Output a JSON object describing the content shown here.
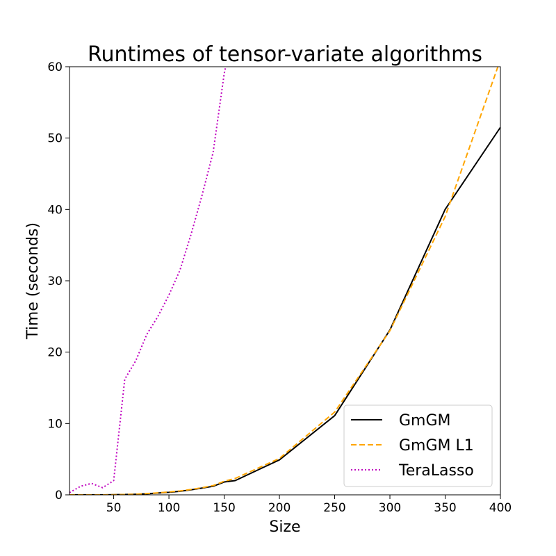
{
  "chart_data": {
    "type": "line",
    "title": "Runtimes of tensor-variate algorithms",
    "xlabel": "Size",
    "ylabel": "Time (seconds)",
    "xlim": [
      10,
      400
    ],
    "ylim": [
      0,
      60
    ],
    "x_ticks": [
      50,
      100,
      150,
      200,
      250,
      300,
      350,
      400
    ],
    "y_ticks": [
      0,
      10,
      20,
      30,
      40,
      50,
      60
    ],
    "grid": false,
    "legend_position": "lower-right",
    "series": [
      {
        "name": "GmGM",
        "color": "#000000",
        "style": "solid",
        "x": [
          10,
          20,
          30,
          40,
          50,
          60,
          70,
          80,
          90,
          100,
          110,
          120,
          130,
          140,
          150,
          160,
          200,
          250,
          300,
          350,
          400
        ],
        "y": [
          0.0,
          0.0,
          0.0,
          0.0,
          0.02,
          0.05,
          0.08,
          0.15,
          0.25,
          0.35,
          0.5,
          0.7,
          0.95,
          1.2,
          1.8,
          2.0,
          4.9,
          11.1,
          23.1,
          40.0,
          51.5
        ]
      },
      {
        "name": "GmGM L1",
        "color": "#FFA500",
        "style": "dashed",
        "x": [
          10,
          20,
          30,
          40,
          50,
          60,
          70,
          80,
          90,
          100,
          110,
          120,
          130,
          140,
          150,
          160,
          200,
          250,
          300,
          350,
          400
        ],
        "y": [
          0.0,
          0.0,
          0.0,
          0.0,
          0.02,
          0.05,
          0.08,
          0.18,
          0.28,
          0.4,
          0.55,
          0.75,
          1.0,
          1.3,
          1.9,
          2.3,
          5.1,
          11.6,
          23.0,
          39.0,
          61.0
        ]
      },
      {
        "name": "TeraLasso",
        "color": "#BF00BF",
        "style": "dotted",
        "x": [
          10,
          20,
          30,
          40,
          50,
          60,
          70,
          80,
          90,
          100,
          110,
          120,
          130,
          140,
          150,
          152
        ],
        "y": [
          0.3,
          1.2,
          1.6,
          1.0,
          2.0,
          16.2,
          18.8,
          22.5,
          25.0,
          28.0,
          31.5,
          36.5,
          42.0,
          48.0,
          59.0,
          60.5
        ]
      }
    ]
  }
}
